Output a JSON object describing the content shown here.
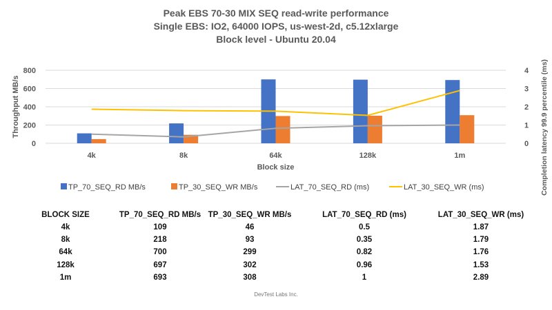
{
  "chart_data": {
    "type": "bar+line",
    "title": [
      "Peak EBS 70-30 MIX SEQ read-write performance",
      "Single EBS: IO2, 64000 IOPS, us-west-2d, c5.12xlarge",
      "Block level - Ubuntu 20.04"
    ],
    "xlabel": "Block size",
    "ylabel": "Throughput MB/s",
    "y2label": "Completion latency 99.9 percentile (ms)",
    "categories": [
      "4k",
      "8k",
      "64k",
      "128k",
      "1m"
    ],
    "ylim": [
      0,
      800
    ],
    "yticks": [
      "0",
      "200",
      "400",
      "600",
      "800"
    ],
    "y2lim": [
      0,
      4
    ],
    "y2ticks": [
      "0",
      "1",
      "2",
      "3",
      "4"
    ],
    "grid": true,
    "legend": "bottom",
    "series": [
      {
        "name": "TP_70_SEQ_RD MB/s",
        "kind": "bar",
        "axis": "left",
        "color": "#4472C4",
        "values": [
          109,
          218,
          700,
          697,
          693
        ]
      },
      {
        "name": "TP_30_SEQ_WR MB/s",
        "kind": "bar",
        "axis": "left",
        "color": "#ED7D31",
        "values": [
          46,
          93,
          299,
          302,
          308
        ]
      },
      {
        "name": "LAT_70_SEQ_RD (ms)",
        "kind": "line",
        "axis": "right",
        "color": "#A5A5A5",
        "values": [
          0.5,
          0.35,
          0.82,
          0.96,
          1
        ]
      },
      {
        "name": "LAT_30_SEQ_WR (ms)",
        "kind": "line",
        "axis": "right",
        "color": "#FFC000",
        "values": [
          1.87,
          1.79,
          1.76,
          1.53,
          2.89
        ]
      }
    ]
  },
  "table": {
    "headers": [
      "BLOCK SIZE",
      "TP_70_SEQ_RD MB/s",
      "TP_30_SEQ_WR MB/s",
      "LAT_70_SEQ_RD (ms)",
      "LAT_30_SEQ_WR (ms)"
    ],
    "rows": [
      [
        "4k",
        "109",
        "46",
        "0.5",
        "1.87"
      ],
      [
        "8k",
        "218",
        "93",
        "0.35",
        "1.79"
      ],
      [
        "64k",
        "700",
        "299",
        "0.82",
        "1.76"
      ],
      [
        "128k",
        "697",
        "302",
        "0.96",
        "1.53"
      ],
      [
        "1m",
        "693",
        "308",
        "1",
        "2.89"
      ]
    ]
  },
  "footer": "DevTest Labs Inc."
}
